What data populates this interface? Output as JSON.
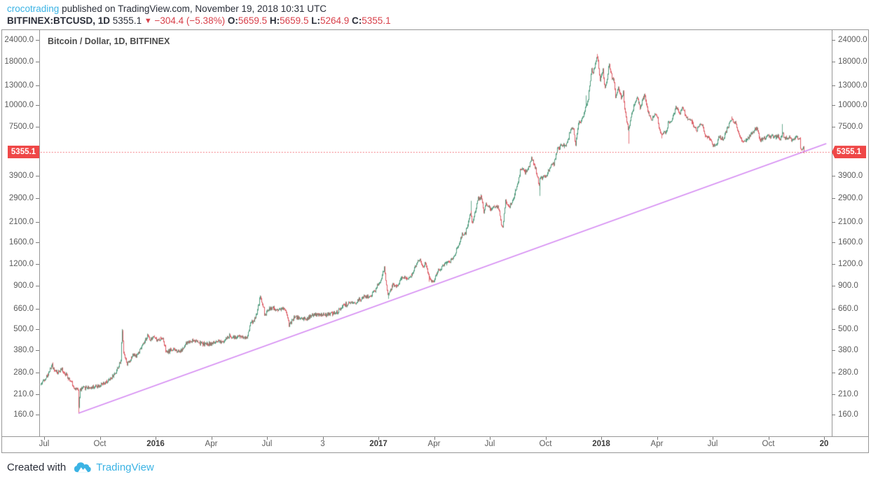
{
  "header": {
    "author": "crocotrading",
    "published_text": "published on TradingView.com, November 19, 2018 10:31 UTC",
    "symbol": "BITFINEX:BTCUSD, 1D",
    "last": "5355.1",
    "direction_icon": "down-triangle",
    "change": "−304.4 (−5.38%)",
    "o_label": "O:",
    "o_value": "5659.5",
    "h_label": "H:",
    "h_value": "5659.5",
    "l_label": "L:",
    "l_value": "5264.9",
    "c_label": "C:",
    "c_value": "5355.1"
  },
  "chart": {
    "title": "Bitcoin / Dollar, 1D, BITFINEX",
    "last_price_label": "5355.1",
    "colors": {
      "up": "#4f9b7d",
      "down": "#dd5a63",
      "trendline": "#d488f2",
      "price_line": "#f0545c",
      "tag_bg": "#ef4747",
      "link_blue": "#3bb3e4",
      "change_red": "#d8404a"
    }
  },
  "footer": {
    "created_with": "Created with",
    "brand": "TradingView"
  },
  "chart_data": {
    "type": "candlestick",
    "symbol": "BITFINEX:BTCUSD",
    "interval": "1D",
    "title": "Bitcoin / Dollar, 1D, BITFINEX",
    "y_scale": "log",
    "y_range": [
      160,
      24000
    ],
    "grid": false,
    "y_ticks": [
      24000.0,
      18000.0,
      13000.0,
      10000.0,
      7500.0,
      3900.0,
      2900.0,
      2100.0,
      1600.0,
      1200.0,
      900.0,
      660.0,
      500.0,
      380.0,
      280.0,
      210.0,
      160.0
    ],
    "x_ticks": [
      {
        "label": "Jul",
        "bold": false
      },
      {
        "label": "Oct",
        "bold": false
      },
      {
        "label": "2016",
        "bold": true
      },
      {
        "label": "Apr",
        "bold": false
      },
      {
        "label": "Jul",
        "bold": false
      },
      {
        "label": "3",
        "bold": false
      },
      {
        "label": "2017",
        "bold": true
      },
      {
        "label": "Apr",
        "bold": false
      },
      {
        "label": "Jul",
        "bold": false
      },
      {
        "label": "Oct",
        "bold": false
      },
      {
        "label": "2018",
        "bold": true
      },
      {
        "label": "Apr",
        "bold": false
      },
      {
        "label": "Jul",
        "bold": false
      },
      {
        "label": "Oct",
        "bold": false
      },
      {
        "label": "20",
        "bold": true
      }
    ],
    "last_price": 5355.1,
    "hline": {
      "price": 5355.1,
      "style": "dotted"
    },
    "trendline": {
      "from": [
        "2015-08-25",
        163
      ],
      "to": [
        "2018-12-26",
        6000
      ]
    },
    "price_path": [
      [
        "2015-06-24",
        240
      ],
      [
        "2015-07-05",
        272
      ],
      [
        "2015-07-12",
        310
      ],
      [
        "2015-07-20",
        278
      ],
      [
        "2015-07-28",
        293
      ],
      [
        "2015-08-08",
        262
      ],
      [
        "2015-08-18",
        228
      ],
      [
        "2015-08-24",
        220
      ],
      [
        "2015-08-25",
        178
      ],
      [
        "2015-08-27",
        224
      ],
      [
        "2015-09-05",
        230
      ],
      [
        "2015-09-15",
        230
      ],
      [
        "2015-09-25",
        236
      ],
      [
        "2015-10-05",
        240
      ],
      [
        "2015-10-15",
        256
      ],
      [
        "2015-10-25",
        285
      ],
      [
        "2015-11-01",
        325
      ],
      [
        "2015-11-04",
        490
      ],
      [
        "2015-11-06",
        372
      ],
      [
        "2015-11-11",
        315
      ],
      [
        "2015-11-16",
        332
      ],
      [
        "2015-11-21",
        355
      ],
      [
        "2015-11-27",
        352
      ],
      [
        "2015-12-05",
        390
      ],
      [
        "2015-12-12",
        435
      ],
      [
        "2015-12-15",
        462
      ],
      [
        "2015-12-18",
        437
      ],
      [
        "2015-12-24",
        455
      ],
      [
        "2015-12-31",
        430
      ],
      [
        "2016-01-08",
        450
      ],
      [
        "2016-01-15",
        365
      ],
      [
        "2016-01-22",
        382
      ],
      [
        "2016-01-29",
        378
      ],
      [
        "2016-02-08",
        375
      ],
      [
        "2016-02-18",
        420
      ],
      [
        "2016-02-28",
        433
      ],
      [
        "2016-03-10",
        415
      ],
      [
        "2016-03-20",
        410
      ],
      [
        "2016-03-30",
        416
      ],
      [
        "2016-04-10",
        421
      ],
      [
        "2016-04-20",
        435
      ],
      [
        "2016-04-27",
        460
      ],
      [
        "2016-05-05",
        448
      ],
      [
        "2016-05-15",
        455
      ],
      [
        "2016-05-25",
        448
      ],
      [
        "2016-05-30",
        535
      ],
      [
        "2016-06-08",
        582
      ],
      [
        "2016-06-13",
        700
      ],
      [
        "2016-06-16",
        762
      ],
      [
        "2016-06-21",
        665
      ],
      [
        "2016-06-23",
        590
      ],
      [
        "2016-06-28",
        648
      ],
      [
        "2016-07-05",
        670
      ],
      [
        "2016-07-12",
        650
      ],
      [
        "2016-07-20",
        662
      ],
      [
        "2016-07-27",
        655
      ],
      [
        "2016-08-02",
        527
      ],
      [
        "2016-08-10",
        590
      ],
      [
        "2016-08-20",
        580
      ],
      [
        "2016-08-30",
        575
      ],
      [
        "2016-09-10",
        607
      ],
      [
        "2016-09-20",
        605
      ],
      [
        "2016-09-30",
        608
      ],
      [
        "2016-10-10",
        617
      ],
      [
        "2016-10-20",
        630
      ],
      [
        "2016-10-28",
        688
      ],
      [
        "2016-11-05",
        703
      ],
      [
        "2016-11-14",
        702
      ],
      [
        "2016-11-23",
        740
      ],
      [
        "2016-12-02",
        770
      ],
      [
        "2016-12-12",
        778
      ],
      [
        "2016-12-22",
        865
      ],
      [
        "2016-12-29",
        965
      ],
      [
        "2017-01-04",
        1130
      ],
      [
        "2017-01-07",
        892
      ],
      [
        "2017-01-11",
        785
      ],
      [
        "2017-01-17",
        900
      ],
      [
        "2017-01-25",
        895
      ],
      [
        "2017-02-02",
        1005
      ],
      [
        "2017-02-10",
        990
      ],
      [
        "2017-02-20",
        1055
      ],
      [
        "2017-02-24",
        1180
      ],
      [
        "2017-03-03",
        1280
      ],
      [
        "2017-03-08",
        1150
      ],
      [
        "2017-03-12",
        1222
      ],
      [
        "2017-03-18",
        1000
      ],
      [
        "2017-03-24",
        935
      ],
      [
        "2017-03-29",
        1040
      ],
      [
        "2017-04-05",
        1135
      ],
      [
        "2017-04-12",
        1210
      ],
      [
        "2017-04-20",
        1230
      ],
      [
        "2017-04-27",
        1330
      ],
      [
        "2017-05-04",
        1520
      ],
      [
        "2017-05-11",
        1790
      ],
      [
        "2017-05-17",
        1830
      ],
      [
        "2017-05-22",
        2190
      ],
      [
        "2017-05-25",
        2440
      ],
      [
        "2017-05-27",
        2050
      ],
      [
        "2017-06-01",
        2400
      ],
      [
        "2017-06-06",
        2870
      ],
      [
        "2017-06-11",
        2960
      ],
      [
        "2017-06-15",
        2430
      ],
      [
        "2017-06-19",
        2720
      ],
      [
        "2017-06-26",
        2470
      ],
      [
        "2017-07-02",
        2550
      ],
      [
        "2017-07-08",
        2560
      ],
      [
        "2017-07-16",
        1930
      ],
      [
        "2017-07-20",
        2850
      ],
      [
        "2017-07-26",
        2560
      ],
      [
        "2017-08-01",
        2750
      ],
      [
        "2017-08-08",
        3380
      ],
      [
        "2017-08-14",
        4250
      ],
      [
        "2017-08-17",
        4390
      ],
      [
        "2017-08-22",
        4080
      ],
      [
        "2017-08-28",
        4390
      ],
      [
        "2017-09-01",
        4920
      ],
      [
        "2017-09-08",
        4270
      ],
      [
        "2017-09-14",
        3250
      ],
      [
        "2017-09-15",
        3715
      ],
      [
        "2017-09-20",
        3900
      ],
      [
        "2017-09-25",
        3945
      ],
      [
        "2017-10-01",
        4400
      ],
      [
        "2017-10-08",
        4600
      ],
      [
        "2017-10-13",
        5640
      ],
      [
        "2017-10-17",
        5600
      ],
      [
        "2017-10-21",
        6005
      ],
      [
        "2017-10-25",
        5740
      ],
      [
        "2017-10-29",
        6150
      ],
      [
        "2017-11-03",
        7080
      ],
      [
        "2017-11-08",
        7440
      ],
      [
        "2017-11-12",
        5950
      ],
      [
        "2017-11-16",
        7870
      ],
      [
        "2017-11-20",
        8040
      ],
      [
        "2017-11-25",
        8790
      ],
      [
        "2017-11-29",
        9910
      ],
      [
        "2017-12-03",
        11250
      ],
      [
        "2017-12-06",
        14090
      ],
      [
        "2017-12-08",
        16190
      ],
      [
        "2017-12-10",
        15170
      ],
      [
        "2017-12-13",
        16700
      ],
      [
        "2017-12-17",
        19340
      ],
      [
        "2017-12-20",
        16460
      ],
      [
        "2017-12-22",
        13830
      ],
      [
        "2017-12-26",
        16100
      ],
      [
        "2017-12-30",
        12630
      ],
      [
        "2018-01-03",
        15150
      ],
      [
        "2018-01-06",
        17170
      ],
      [
        "2018-01-10",
        14400
      ],
      [
        "2018-01-14",
        13770
      ],
      [
        "2018-01-16",
        11140
      ],
      [
        "2018-01-20",
        12850
      ],
      [
        "2018-01-25",
        11150
      ],
      [
        "2018-01-28",
        11800
      ],
      [
        "2018-02-01",
        9060
      ],
      [
        "2018-02-06",
        6960
      ],
      [
        "2018-02-10",
        8570
      ],
      [
        "2018-02-16",
        10100
      ],
      [
        "2018-02-20",
        11240
      ],
      [
        "2018-02-25",
        9600
      ],
      [
        "2018-03-01",
        10950
      ],
      [
        "2018-03-05",
        11500
      ],
      [
        "2018-03-09",
        9290
      ],
      [
        "2018-03-15",
        8270
      ],
      [
        "2018-03-21",
        8930
      ],
      [
        "2018-03-26",
        8160
      ],
      [
        "2018-03-30",
        6890
      ],
      [
        "2018-04-04",
        6810
      ],
      [
        "2018-04-08",
        7030
      ],
      [
        "2018-04-12",
        7890
      ],
      [
        "2018-04-17",
        8070
      ],
      [
        "2018-04-24",
        9640
      ],
      [
        "2018-05-01",
        9060
      ],
      [
        "2018-05-05",
        9830
      ],
      [
        "2018-05-11",
        8440
      ],
      [
        "2018-05-18",
        8250
      ],
      [
        "2018-05-24",
        7550
      ],
      [
        "2018-05-28",
        7100
      ],
      [
        "2018-06-02",
        7640
      ],
      [
        "2018-06-07",
        7660
      ],
      [
        "2018-06-10",
        6770
      ],
      [
        "2018-06-16",
        6510
      ],
      [
        "2018-06-22",
        6080
      ],
      [
        "2018-06-24",
        5880
      ],
      [
        "2018-06-29",
        5870
      ],
      [
        "2018-07-04",
        6590
      ],
      [
        "2018-07-10",
        6390
      ],
      [
        "2018-07-17",
        7320
      ],
      [
        "2018-07-24",
        8420
      ],
      [
        "2018-07-31",
        7750
      ],
      [
        "2018-08-04",
        7020
      ],
      [
        "2018-08-08",
        6290
      ],
      [
        "2018-08-11",
        6250
      ],
      [
        "2018-08-14",
        6210
      ],
      [
        "2018-08-20",
        6480
      ],
      [
        "2018-08-28",
        7090
      ],
      [
        "2018-09-04",
        7380
      ],
      [
        "2018-09-08",
        6220
      ],
      [
        "2018-09-12",
        6330
      ],
      [
        "2018-09-17",
        6520
      ],
      [
        "2018-09-21",
        6730
      ],
      [
        "2018-09-25",
        6450
      ],
      [
        "2018-09-29",
        6600
      ],
      [
        "2018-10-04",
        6570
      ],
      [
        "2018-10-08",
        6650
      ],
      [
        "2018-10-11",
        6270
      ],
      [
        "2018-10-15",
        6880
      ],
      [
        "2018-10-19",
        6440
      ],
      [
        "2018-10-24",
        6480
      ],
      [
        "2018-10-29",
        6330
      ],
      [
        "2018-11-03",
        6390
      ],
      [
        "2018-11-07",
        6530
      ],
      [
        "2018-11-10",
        6400
      ],
      [
        "2018-11-13",
        6340
      ],
      [
        "2018-11-14",
        5710
      ],
      [
        "2018-11-15",
        5630
      ],
      [
        "2018-11-16",
        5570
      ],
      [
        "2018-11-17",
        5600
      ],
      [
        "2018-11-18",
        5640
      ],
      [
        "2018-11-19",
        5355.1
      ]
    ],
    "wick_spikes": [
      [
        "2015-08-25",
        "low",
        162
      ],
      [
        "2015-11-04",
        "high",
        502
      ],
      [
        "2016-06-16",
        "high",
        780
      ],
      [
        "2017-01-05",
        "high",
        1155
      ],
      [
        "2017-01-11",
        "low",
        752
      ],
      [
        "2017-03-18",
        "low",
        945
      ],
      [
        "2017-05-25",
        "high",
        2790
      ],
      [
        "2017-09-15",
        "low",
        2980
      ],
      [
        "2017-11-29",
        "high",
        11420
      ],
      [
        "2017-12-17",
        "high",
        19890
      ],
      [
        "2018-02-06",
        "low",
        5990
      ],
      [
        "2018-04-01",
        "low",
        6430
      ],
      [
        "2018-10-15",
        "high",
        7790
      ],
      [
        "2018-11-19",
        "low",
        5264.9
      ]
    ]
  }
}
